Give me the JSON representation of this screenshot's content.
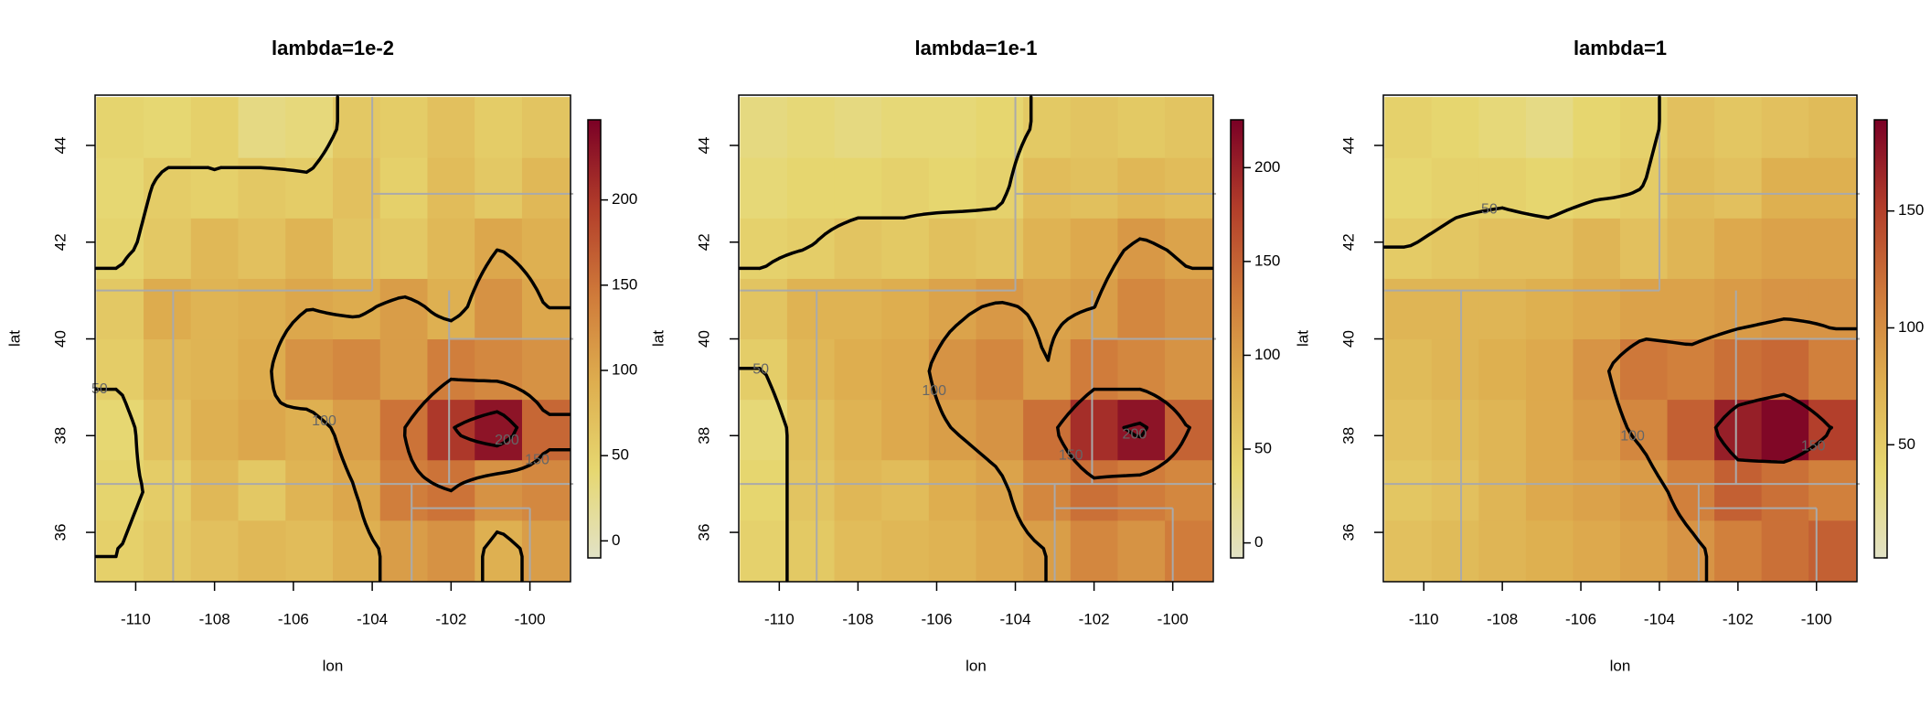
{
  "chart_data": [
    {
      "type": "heatmap",
      "title": "lambda=1e-2",
      "xlabel": "lon",
      "ylabel": "lat",
      "xlim": [
        -111.03,
        -98.97
      ],
      "ylim": [
        34.98,
        45.04
      ],
      "xticks": [
        -110,
        -108,
        -106,
        -104,
        -102,
        -100
      ],
      "yticks": [
        36,
        38,
        40,
        42,
        44
      ],
      "x": [
        -110.4,
        -109.2,
        -108,
        -106.8,
        -105.6,
        -104.4,
        -103.2,
        -102,
        -100.8,
        -99.6
      ],
      "y": [
        35.625,
        36.875,
        38.125,
        39.375,
        40.625,
        41.875,
        43.125,
        44.375
      ],
      "z": [
        [
          50,
          60,
          70,
          80,
          75,
          90,
          110,
          120,
          90,
          110
        ],
        [
          45,
          55,
          80,
          60,
          85,
          100,
          140,
          150,
          120,
          130
        ],
        [
          40,
          70,
          90,
          100,
          90,
          110,
          150,
          200,
          230,
          160
        ],
        [
          55,
          80,
          85,
          95,
          120,
          130,
          110,
          140,
          130,
          120
        ],
        [
          60,
          95,
          85,
          90,
          100,
          95,
          110,
          90,
          120,
          100
        ],
        [
          45,
          60,
          80,
          70,
          85,
          65,
          60,
          80,
          100,
          90
        ],
        [
          40,
          55,
          50,
          60,
          55,
          70,
          50,
          75,
          60,
          80
        ],
        [
          45,
          40,
          50,
          30,
          35,
          60,
          55,
          70,
          55,
          65
        ]
      ],
      "zlim": [
        -10,
        247
      ],
      "colorbar_ticks": [
        0,
        50,
        100,
        150,
        200
      ],
      "contour_levels": [
        50,
        100,
        150,
        200
      ],
      "colorscale": [
        "#e2e2c6",
        "#e6d770",
        "#deae4f",
        "#cf7a3a",
        "#b23d2a",
        "#7a0025"
      ]
    },
    {
      "type": "heatmap",
      "title": "lambda=1e-1",
      "xlabel": "lon",
      "ylabel": "lat",
      "xlim": [
        -111.03,
        -98.97
      ],
      "ylim": [
        34.98,
        45.04
      ],
      "xticks": [
        -110,
        -108,
        -106,
        -104,
        -102,
        -100
      ],
      "yticks": [
        36,
        38,
        40,
        42,
        44
      ],
      "x": [
        -110.4,
        -109.2,
        -108,
        -106.8,
        -105.6,
        -104.4,
        -103.2,
        -102,
        -100.8,
        -99.6
      ],
      "y": [
        35.625,
        36.875,
        38.125,
        39.375,
        40.625,
        41.875,
        43.125,
        44.375
      ],
      "z": [
        [
          45,
          55,
          70,
          75,
          80,
          90,
          100,
          120,
          110,
          130
        ],
        [
          40,
          60,
          75,
          70,
          85,
          95,
          120,
          140,
          130,
          120
        ],
        [
          35,
          65,
          80,
          90,
          100,
          110,
          140,
          190,
          210,
          150
        ],
        [
          50,
          75,
          85,
          90,
          110,
          120,
          100,
          130,
          120,
          110
        ],
        [
          60,
          80,
          80,
          85,
          95,
          105,
          95,
          100,
          120,
          110
        ],
        [
          45,
          50,
          60,
          55,
          65,
          60,
          80,
          90,
          105,
          95
        ],
        [
          35,
          40,
          40,
          45,
          40,
          45,
          70,
          65,
          75,
          70
        ],
        [
          30,
          35,
          30,
          35,
          35,
          40,
          55,
          60,
          55,
          60
        ]
      ],
      "zlim": [
        -8,
        225.5
      ],
      "colorbar_ticks": [
        0,
        50,
        100,
        150,
        200
      ],
      "contour_levels": [
        50,
        100,
        150,
        200
      ],
      "colorscale": [
        "#e2e2c6",
        "#e6d770",
        "#deae4f",
        "#cf7a3a",
        "#b23d2a",
        "#7a0025"
      ]
    },
    {
      "type": "heatmap",
      "title": "lambda=1",
      "xlabel": "lon",
      "ylabel": "lat",
      "xlim": [
        -111.03,
        -98.97
      ],
      "ylim": [
        34.98,
        45.04
      ],
      "xticks": [
        -110,
        -108,
        -106,
        -104,
        -102,
        -100
      ],
      "yticks": [
        36,
        38,
        40,
        42,
        44
      ],
      "x": [
        -110.4,
        -109.2,
        -108,
        -106.8,
        -105.6,
        -104.4,
        -103.2,
        -102,
        -100.8,
        -99.6
      ],
      "y": [
        35.625,
        36.875,
        38.125,
        39.375,
        40.625,
        41.875,
        43.125,
        44.375
      ],
      "z": [
        [
          60,
          65,
          70,
          75,
          80,
          85,
          95,
          110,
          120,
          130
        ],
        [
          55,
          60,
          70,
          80,
          85,
          90,
          110,
          130,
          120,
          110
        ],
        [
          60,
          65,
          70,
          80,
          90,
          105,
          130,
          170,
          185,
          150
        ],
        [
          65,
          70,
          75,
          80,
          95,
          115,
          110,
          120,
          125,
          110
        ],
        [
          70,
          70,
          70,
          75,
          80,
          85,
          85,
          90,
          95,
          95
        ],
        [
          50,
          55,
          60,
          60,
          70,
          60,
          70,
          80,
          85,
          85
        ],
        [
          40,
          45,
          45,
          40,
          45,
          50,
          65,
          60,
          75,
          75
        ],
        [
          45,
          40,
          35,
          30,
          40,
          45,
          60,
          55,
          60,
          65
        ]
      ],
      "zlim": [
        1.6,
        189
      ],
      "colorbar_ticks": [
        50,
        100,
        150
      ],
      "contour_levels": [
        50,
        100,
        150
      ],
      "colorscale": [
        "#e2e2c6",
        "#e6d770",
        "#deae4f",
        "#cf7a3a",
        "#b23d2a",
        "#7a0025"
      ]
    }
  ]
}
